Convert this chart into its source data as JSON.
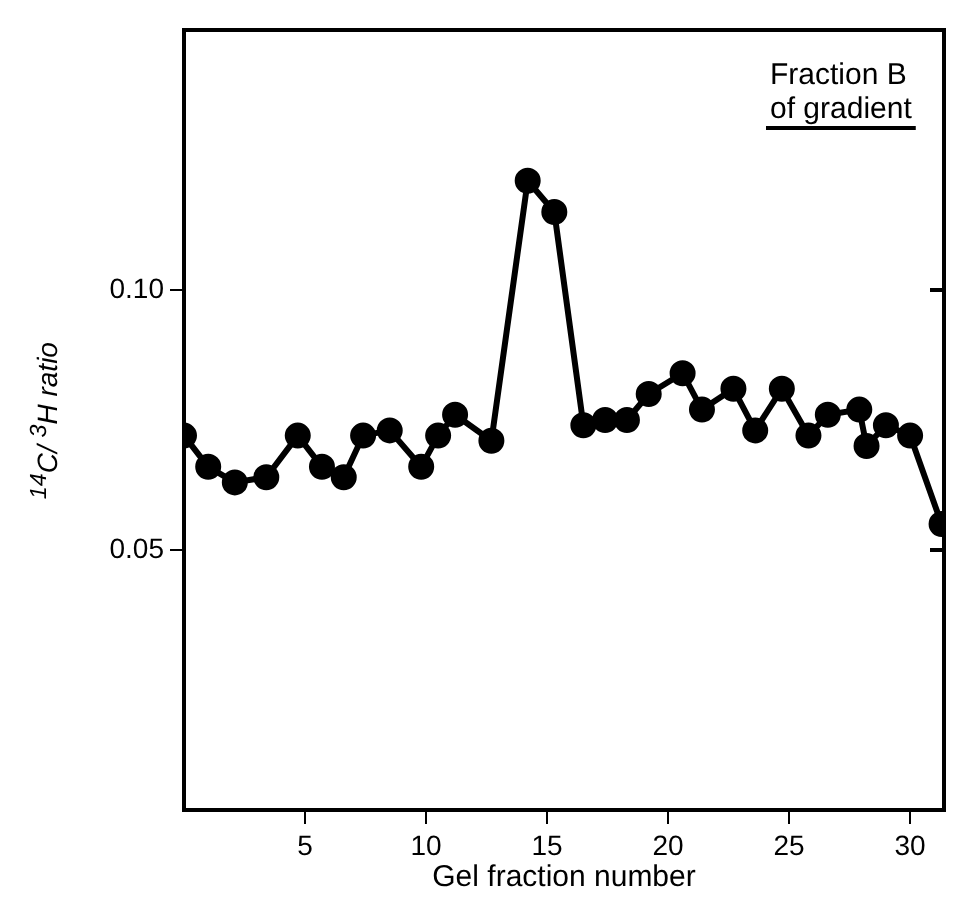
{
  "chart_data": {
    "type": "line",
    "xlabel": "Gel fraction number",
    "ylabel": "$^{14}$C/ $^{3}$H ratio",
    "x": [
      0,
      1,
      2.1,
      3.4,
      4.7,
      5.7,
      6.6,
      7.4,
      8.5,
      9.8,
      10.5,
      11.2,
      12.7,
      14.2,
      15.3,
      16.5,
      17.4,
      18.3,
      19.2,
      20.6,
      21.4,
      22.7,
      23.6,
      24.7,
      25.8,
      26.6,
      27.9,
      28.2,
      29,
      30,
      31.3
    ],
    "values": [
      0.072,
      0.066,
      0.063,
      0.064,
      0.072,
      0.066,
      0.064,
      0.072,
      0.073,
      0.066,
      0.072,
      0.076,
      0.071,
      0.121,
      0.115,
      0.074,
      0.075,
      0.075,
      0.08,
      0.084,
      0.077,
      0.081,
      0.073,
      0.081,
      0.072,
      0.076,
      0.077,
      0.07,
      0.074,
      0.072,
      0.055
    ],
    "color": "#000000",
    "marker": "circle",
    "line_style": "solid",
    "grid": false,
    "legend": false,
    "xlim": [
      0,
      31.4
    ],
    "xticks": [
      5,
      10,
      15,
      20,
      25,
      30
    ],
    "ylim": [
      0,
      0.15
    ],
    "yticks": [
      {
        "value": 0.05,
        "label": "0.05"
      },
      {
        "value": 0.1,
        "label": "0.10"
      }
    ],
    "annotations": [
      "Fraction B\nof gradient"
    ]
  }
}
